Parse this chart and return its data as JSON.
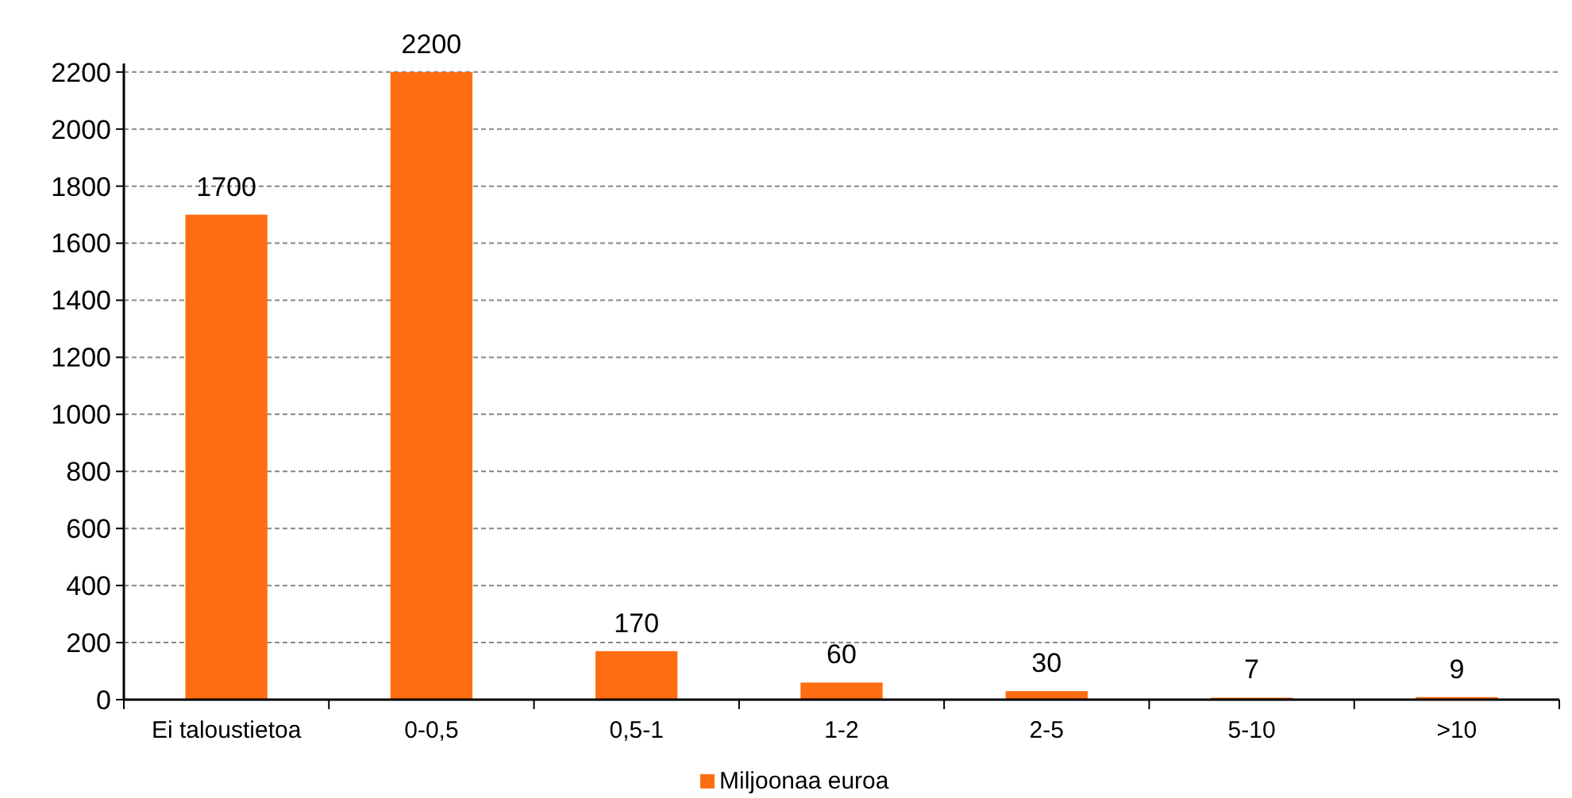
{
  "chart_data": {
    "type": "bar",
    "categories": [
      "Ei taloustietoa",
      "0-0,5",
      "0,5-1",
      "1-2",
      "2-5",
      "5-10",
      ">10"
    ],
    "series": [
      {
        "name": "Miljoonaa euroa",
        "color": "#ff6d13",
        "values": [
          1700,
          2200,
          170,
          60,
          30,
          7,
          9
        ]
      }
    ],
    "ylim": [
      0,
      2230
    ],
    "yticks": [
      0,
      200,
      400,
      600,
      800,
      1000,
      1200,
      1400,
      1600,
      1800,
      2000,
      2200
    ],
    "grid": "y",
    "data_labels": true,
    "legend": "bottom"
  }
}
